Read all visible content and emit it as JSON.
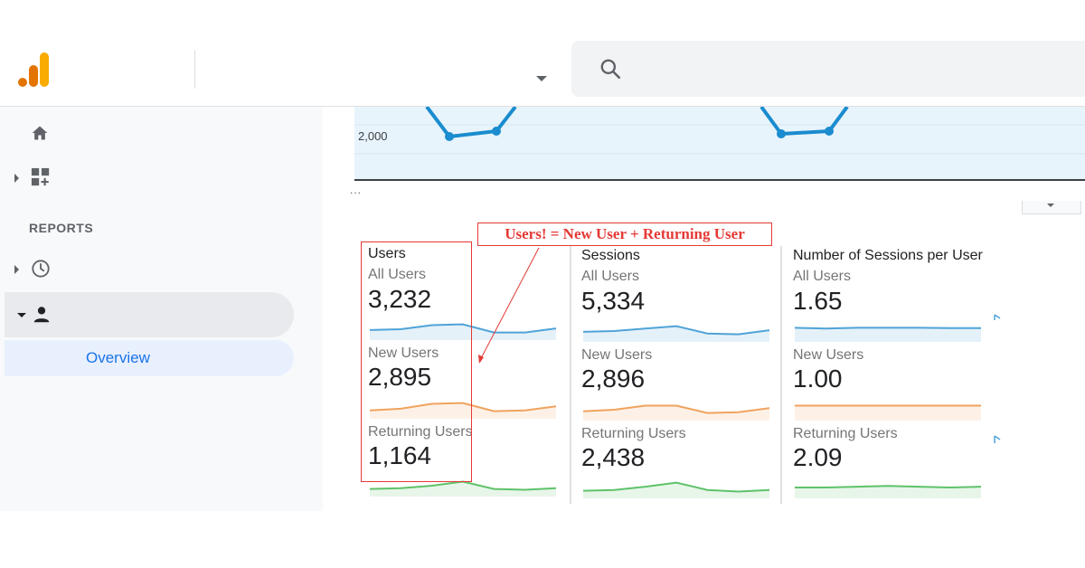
{
  "colors": {
    "ga_orange": "#f9ab00",
    "ga_dark_orange": "#e37400",
    "blue_series": "#4fa3d8",
    "orange_series": "#f0a35e",
    "green_series": "#5fc26a",
    "annotation_red": "#e53935",
    "main_line": "#1a8ccf"
  },
  "icons": {
    "logo": "google-analytics-logo",
    "search": "search-icon",
    "home": "home-icon",
    "customization": "dashboard-grid-icon",
    "realtime": "clock-icon",
    "audience": "person-icon"
  },
  "sidebar": {
    "reports_heading": "REPORTS",
    "overview_label": "Overview"
  },
  "main_chart": {
    "ytick": "2,000",
    "ellipsis": "..."
  },
  "annotation": {
    "text": "Users! = New User + Returning User"
  },
  "columns": [
    {
      "title": "Users",
      "segments": [
        {
          "label": "All Users",
          "value": "3,232",
          "spark": [
            0.45,
            0.5,
            0.75,
            0.8,
            0.3,
            0.3,
            0.55
          ]
        },
        {
          "label": "New Users",
          "value": "2,895",
          "spark": [
            0.35,
            0.45,
            0.75,
            0.8,
            0.3,
            0.35,
            0.6
          ]
        },
        {
          "label": "Returning Users",
          "value": "1,164",
          "spark": [
            0.3,
            0.35,
            0.5,
            0.75,
            0.3,
            0.25,
            0.35
          ]
        }
      ]
    },
    {
      "title": "Sessions",
      "segments": [
        {
          "label": "All Users",
          "value": "5,334",
          "spark": [
            0.45,
            0.5,
            0.65,
            0.8,
            0.35,
            0.3,
            0.55
          ]
        },
        {
          "label": "New Users",
          "value": "2,896",
          "spark": [
            0.4,
            0.5,
            0.75,
            0.75,
            0.3,
            0.35,
            0.6
          ]
        },
        {
          "label": "Returning Users",
          "value": "2,438",
          "spark": [
            0.3,
            0.35,
            0.55,
            0.8,
            0.35,
            0.25,
            0.35
          ]
        }
      ]
    },
    {
      "title": "Number of Sessions per User",
      "segments": [
        {
          "label": "All Users",
          "value": "1.65",
          "spark": [
            0.7,
            0.65,
            0.7,
            0.7,
            0.7,
            0.68,
            0.68
          ]
        },
        {
          "label": "New Users",
          "value": "1.00",
          "spark": [
            0.75,
            0.75,
            0.75,
            0.75,
            0.75,
            0.75,
            0.75
          ]
        },
        {
          "label": "Returning Users",
          "value": "2.09",
          "spark": [
            0.5,
            0.5,
            0.55,
            0.6,
            0.55,
            0.5,
            0.55
          ]
        }
      ]
    }
  ]
}
